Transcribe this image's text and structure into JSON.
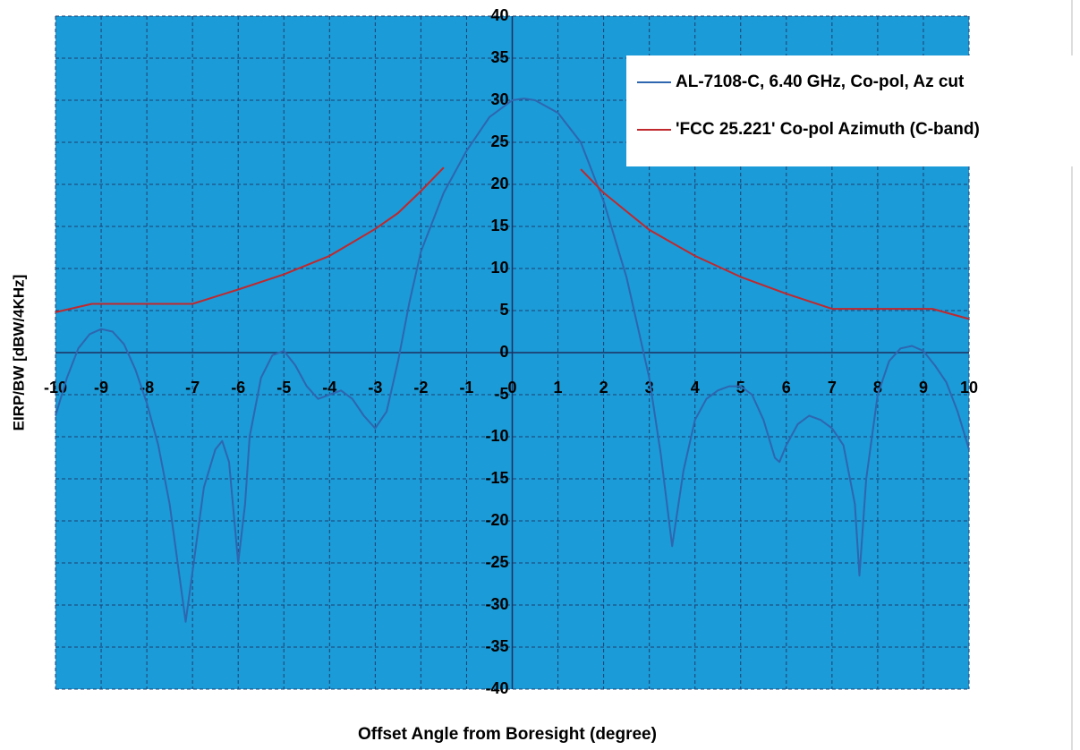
{
  "chart_data": {
    "type": "line",
    "xlabel": "Offset Angle from Boresight (degree)",
    "ylabel": "EIRP/BW [dBW/4KHz]",
    "xlim": [
      -10,
      10
    ],
    "ylim": [
      -40,
      40
    ],
    "xticks": [
      -10,
      -9,
      -8,
      -7,
      -6,
      -5,
      -4,
      -3,
      -2,
      -1,
      0,
      1,
      2,
      3,
      4,
      5,
      6,
      7,
      8,
      9,
      10
    ],
    "yticks": [
      -40,
      -35,
      -30,
      -25,
      -20,
      -15,
      -10,
      -5,
      0,
      5,
      10,
      15,
      20,
      25,
      30,
      35,
      40
    ],
    "grid": true,
    "background": "#1b9bd7",
    "legend": "top-right",
    "series": [
      {
        "name": "AL-7108-C, 6.40 GHz, Co-pol, Az cut",
        "color": "#2e66b0",
        "x": [
          -10,
          -9.75,
          -9.5,
          -9.25,
          -9,
          -8.75,
          -8.5,
          -8.25,
          -8,
          -7.75,
          -7.5,
          -7.25,
          -7.15,
          -7,
          -6.75,
          -6.5,
          -6.35,
          -6.2,
          -6,
          -5.85,
          -5.75,
          -5.5,
          -5.25,
          -5,
          -4.75,
          -4.5,
          -4.25,
          -4,
          -3.75,
          -3.5,
          -3.25,
          -3,
          -2.75,
          -2.5,
          -2.25,
          -2,
          -1.5,
          -1,
          -0.5,
          0,
          0.25,
          0.5,
          1,
          1.5,
          2,
          2.5,
          2.75,
          3,
          3.25,
          3.5,
          3.75,
          4,
          4.25,
          4.5,
          4.75,
          5,
          5.25,
          5.5,
          5.75,
          5.85,
          6,
          6.25,
          6.5,
          6.75,
          7,
          7.25,
          7.5,
          7.6,
          7.75,
          8,
          8.25,
          8.5,
          8.75,
          9,
          9.25,
          9.5,
          9.75,
          10
        ],
        "values": [
          -7.5,
          -3,
          0.5,
          2.2,
          2.8,
          2.5,
          1,
          -2,
          -6,
          -11,
          -18,
          -28,
          -32,
          -26,
          -16,
          -11.5,
          -10.5,
          -13,
          -25,
          -18,
          -10,
          -3,
          -0.3,
          0.2,
          -1.5,
          -4,
          -5.5,
          -5,
          -4.5,
          -5.5,
          -7.5,
          -9,
          -7,
          -1,
          6,
          12,
          19,
          24,
          28,
          30,
          30.2,
          30,
          28.5,
          25,
          18,
          9,
          3,
          -3,
          -12,
          -23,
          -14,
          -8,
          -5.5,
          -4.5,
          -4,
          -4,
          -5,
          -8,
          -12.5,
          -13,
          -11,
          -8.5,
          -7.5,
          -8,
          -9,
          -11,
          -18,
          -26.5,
          -15,
          -5,
          -1,
          0.5,
          0.8,
          0.2,
          -1.5,
          -3.5,
          -7,
          -11.5
        ]
      },
      {
        "name": "'FCC 25.221' Co-pol Azimuth (C-band)",
        "color": "#c0282e",
        "x": [
          -10,
          -9.2,
          -7,
          -6,
          -5,
          -4,
          -3,
          -2.5,
          -2,
          -1.5,
          0,
          1.5,
          2,
          2.5,
          3,
          4,
          5,
          6,
          7,
          9.2,
          10
        ],
        "values": [
          4.8,
          5.8,
          5.8,
          7.5,
          9.3,
          11.5,
          14.7,
          16.6,
          19.2,
          22,
          null,
          21.8,
          19,
          16.8,
          14.6,
          11.5,
          9,
          7,
          5.2,
          5.2,
          4
        ]
      }
    ]
  }
}
